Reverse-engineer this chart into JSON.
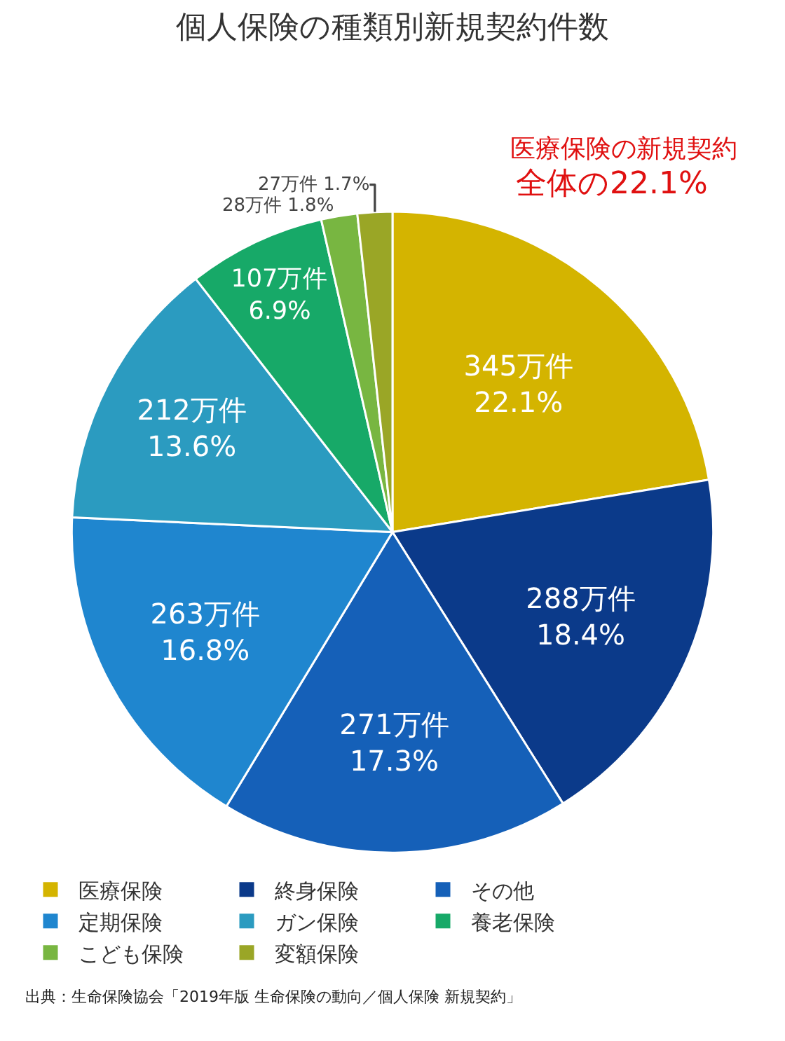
{
  "chart_data": {
    "type": "pie",
    "title": "個人保険の種類別新規契約件数",
    "categories": [
      "医療保険",
      "終身保険",
      "その他",
      "定期保険",
      "ガン保険",
      "養老保険",
      "こども保険",
      "変額保険"
    ],
    "values": [
      345,
      288,
      271,
      263,
      212,
      107,
      28,
      27
    ],
    "value_labels": [
      "345万件\n22.1%",
      "288万件\n18.4%",
      "271万件\n17.3%",
      "263万件\n16.8%",
      "212万件\n13.6%",
      "107万件\n6.9%",
      "28万件 1.8%",
      "27万件 1.7%"
    ],
    "colors": [
      "#d4b400",
      "#0b3a8a",
      "#1560b8",
      "#1f86cf",
      "#2b9bc0",
      "#17a968",
      "#78b641",
      "#9aa626"
    ],
    "legend": "bottom",
    "annotations": [
      "医療保険の新規契約",
      "全体の22.1%",
      "出典：生命保険協会「2019年版 生命保険の動向／個人保険 新規契約」"
    ]
  }
}
